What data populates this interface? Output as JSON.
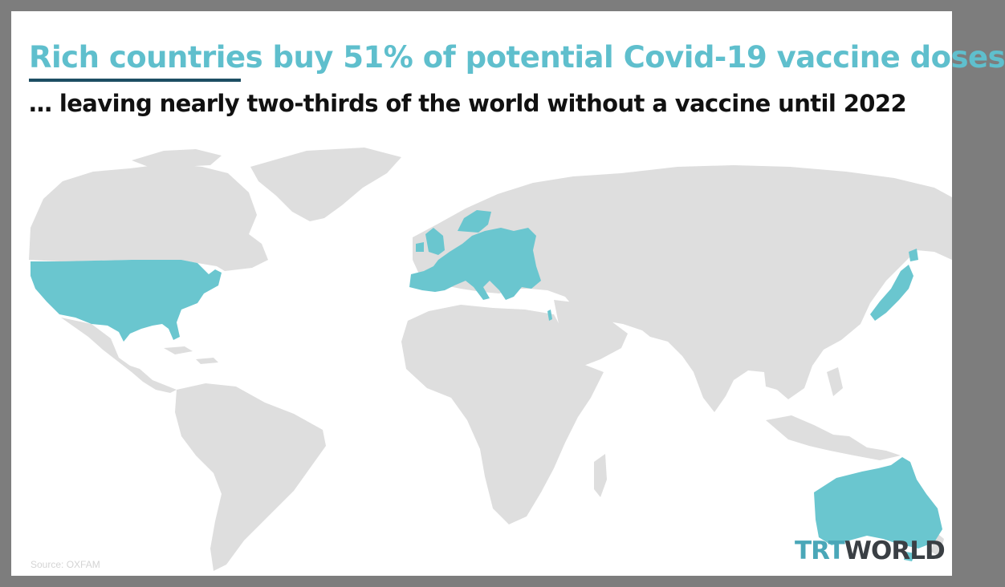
{
  "title": "Rich countries buy 51% of potential Covid-19 vaccine doses",
  "subtitle": "… leaving nearly two-thirds of the world without a vaccine until 2022",
  "source": "Source: OXFAM",
  "logo": {
    "part1": "TRT",
    "part2": "WORLD"
  },
  "colors": {
    "highlight": "#6ac6cf",
    "land": "#dedede",
    "title": "#5fbfcd",
    "underline": "#1d4e63",
    "frame": "#7d7d7d"
  },
  "map": {
    "highlighted_regions": [
      "United States",
      "Europe",
      "Japan",
      "Australia",
      "Israel"
    ]
  }
}
